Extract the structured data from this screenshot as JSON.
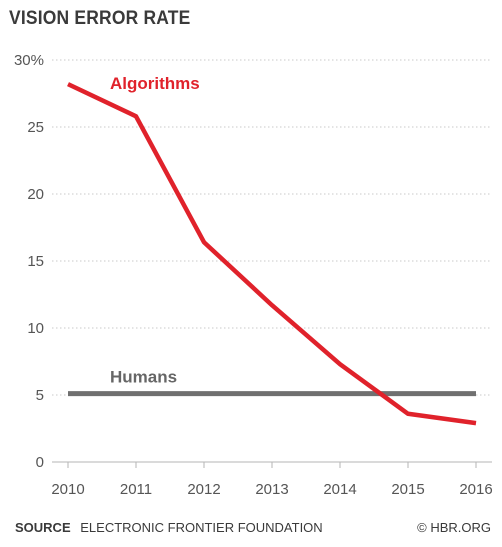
{
  "chart_data": {
    "type": "line",
    "title": "VISION ERROR RATE",
    "x": [
      "2010",
      "2011",
      "2012",
      "2013",
      "2014",
      "2015",
      "2016"
    ],
    "y_ticks": [
      "0",
      "5",
      "10",
      "15",
      "20",
      "25",
      "30%"
    ],
    "ylim": [
      0,
      30
    ],
    "grid": true,
    "series": [
      {
        "name": "Algorithms",
        "values": [
          28.2,
          25.8,
          16.4,
          11.7,
          7.3,
          3.6,
          2.9
        ],
        "color": "#e0222b"
      },
      {
        "name": "Humans",
        "values": [
          5.1,
          5.1,
          5.1,
          5.1,
          5.1,
          5.1,
          5.1
        ],
        "color": "#707070"
      }
    ]
  },
  "footer": {
    "source_label": "SOURCE",
    "source_text": "ELECTRONIC FRONTIER FOUNDATION",
    "credit": "© HBR.ORG"
  }
}
